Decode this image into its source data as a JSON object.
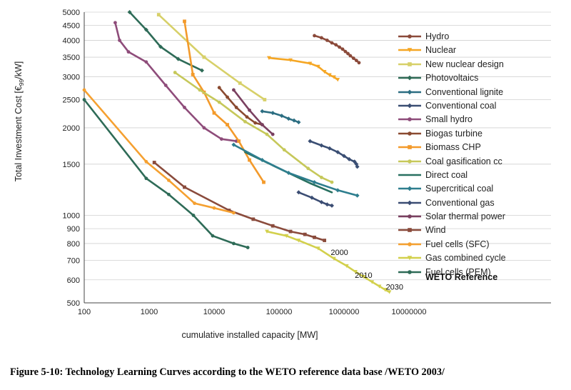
{
  "chart_data": {
    "type": "line",
    "scale": "log-log",
    "xlabel": "cumulative installed capacity [MW]",
    "ylabel": "Total Investment Cost [€99/kW]",
    "ylabel_pre": "Total Investment Cost [€",
    "ylabel_sub": "99",
    "ylabel_post": "/kW]",
    "xlim": [
      100,
      10000000
    ],
    "ylim": [
      500,
      5000
    ],
    "x_ticks": [
      {
        "value": 100,
        "label": "100"
      },
      {
        "value": 1000,
        "label": "1000"
      },
      {
        "value": 10000,
        "label": "10000"
      },
      {
        "value": 100000,
        "label": "100000"
      },
      {
        "value": 1000000,
        "label": "1000000"
      },
      {
        "value": 10000000,
        "label": "10000000"
      }
    ],
    "y_ticks": [
      {
        "value": 500,
        "label": "500"
      },
      {
        "value": 600,
        "label": "600"
      },
      {
        "value": 700,
        "label": "700"
      },
      {
        "value": 800,
        "label": "800"
      },
      {
        "value": 900,
        "label": "900"
      },
      {
        "value": 1000,
        "label": "1000"
      },
      {
        "value": 1500,
        "label": "1500"
      },
      {
        "value": 2000,
        "label": "2000"
      },
      {
        "value": 2500,
        "label": "2500"
      },
      {
        "value": 3000,
        "label": "3000"
      },
      {
        "value": 3500,
        "label": "3500"
      },
      {
        "value": 4000,
        "label": "4000"
      },
      {
        "value": 4500,
        "label": "4500"
      },
      {
        "value": 5000,
        "label": "5000"
      }
    ],
    "annotations": [
      {
        "text": "2000",
        "x": 850000,
        "y": 730
      },
      {
        "text": "2010",
        "x": 2000000,
        "y": 610
      },
      {
        "text": "2030",
        "x": 6000000,
        "y": 555
      }
    ],
    "series": [
      {
        "name": "Hydro",
        "color": "#8B4A3A",
        "marker": "dot",
        "x": [
          350000,
          450000,
          550000,
          650000,
          750000,
          850000,
          950000,
          1050000,
          1150000,
          1250000,
          1400000,
          1550000,
          1700000
        ],
        "y": [
          4150,
          4080,
          4000,
          3920,
          3860,
          3790,
          3730,
          3660,
          3600,
          3540,
          3470,
          3410,
          3350
        ]
      },
      {
        "name": "Nuclear",
        "color": "#F5A623",
        "marker": "tri",
        "x": [
          70000,
          150000,
          300000,
          400000,
          500000,
          600000,
          700000,
          800000
        ],
        "y": [
          3480,
          3420,
          3330,
          3250,
          3120,
          3040,
          2990,
          2930
        ]
      },
      {
        "name": "New nuclear design",
        "color": "#D7D069",
        "marker": "sq",
        "x": [
          1400,
          7000,
          25000,
          60000
        ],
        "y": [
          4900,
          3500,
          2850,
          2500
        ]
      },
      {
        "name": "Photovoltaics",
        "color": "#2E6B57",
        "marker": "dia",
        "x": [
          500,
          900,
          1500,
          2800,
          6500
        ],
        "y": [
          5000,
          4350,
          3800,
          3450,
          3150
        ]
      },
      {
        "name": "Conventional lignite",
        "color": "#2C6E82",
        "marker": "dia",
        "x": [
          55000,
          80000,
          110000,
          140000,
          170000,
          200000
        ],
        "y": [
          2280,
          2250,
          2200,
          2150,
          2120,
          2090
        ]
      },
      {
        "name": "Conventional coal",
        "color": "#3A4E73",
        "marker": "dia",
        "x": [
          300000,
          450000,
          600000,
          800000,
          1000000,
          1200000,
          1450000,
          1550000,
          1600000
        ],
        "y": [
          1800,
          1740,
          1700,
          1650,
          1600,
          1560,
          1530,
          1500,
          1470
        ]
      },
      {
        "name": "Small hydro",
        "color": "#8E4C7A",
        "marker": "dot",
        "x": [
          300,
          350,
          480,
          900,
          1800,
          3500,
          7000,
          13000,
          22000
        ],
        "y": [
          4600,
          4000,
          3650,
          3370,
          2800,
          2350,
          2000,
          1830,
          1800
        ]
      },
      {
        "name": "Biogas turbine",
        "color": "#8A4A30",
        "marker": "dot",
        "x": [
          12000,
          16000,
          22000,
          32000,
          43000,
          55000
        ],
        "y": [
          2750,
          2550,
          2350,
          2180,
          2080,
          2050
        ]
      },
      {
        "name": "Biomass CHP",
        "color": "#F39A2B",
        "marker": "sq",
        "x": [
          3500,
          4700,
          7000,
          10000,
          16000,
          24000,
          35000,
          58000
        ],
        "y": [
          4650,
          3050,
          2650,
          2250,
          2050,
          1800,
          1550,
          1300
        ]
      },
      {
        "name": "Coal gasification cc",
        "color": "#C6C85A",
        "marker": "dot",
        "x": [
          2500,
          6000,
          12000,
          30000,
          65000,
          120000,
          280000,
          450000,
          650000
        ],
        "y": [
          3100,
          2700,
          2450,
          2100,
          1900,
          1680,
          1450,
          1350,
          1300
        ]
      },
      {
        "name": "Direct coal",
        "color": "#287060",
        "marker": "none",
        "x": [
          30000,
          100000,
          300000,
          650000
        ],
        "y": [
          1650,
          1450,
          1290,
          1200
        ]
      },
      {
        "name": "Supercritical coal",
        "color": "#2E7E8E",
        "marker": "dia",
        "x": [
          20000,
          55000,
          140000,
          350000,
          800000,
          1600000
        ],
        "y": [
          1750,
          1550,
          1400,
          1300,
          1220,
          1170
        ]
      },
      {
        "name": "Conventional gas",
        "color": "#3B4D73",
        "marker": "dia",
        "x": [
          200000,
          320000,
          450000,
          550000,
          650000
        ],
        "y": [
          1200,
          1150,
          1110,
          1090,
          1080
        ]
      },
      {
        "name": "Solar thermal power",
        "color": "#7A4060",
        "marker": "dot",
        "x": [
          20000,
          35000,
          55000,
          80000
        ],
        "y": [
          2700,
          2300,
          2050,
          1900
        ]
      },
      {
        "name": "Wind",
        "color": "#8A4B3C",
        "marker": "sq",
        "x": [
          1200,
          3500,
          17000,
          40000,
          80000,
          150000,
          250000,
          350000,
          500000
        ],
        "y": [
          1520,
          1250,
          1040,
          970,
          920,
          880,
          860,
          840,
          820
        ]
      },
      {
        "name": "Fuel cells (SFC)",
        "color": "#F5A030",
        "marker": "dot",
        "x": [
          100,
          900,
          2000,
          5000,
          10000,
          20000
        ],
        "y": [
          2700,
          1530,
          1320,
          1100,
          1060,
          1020
        ]
      },
      {
        "name": "Gas combined cycle",
        "color": "#D2D04C",
        "marker": "tri",
        "x": [
          65000,
          130000,
          200000,
          400000,
          700000,
          1100000,
          1500000,
          2000000,
          2700000,
          3500000,
          4300000,
          5000000
        ],
        "y": [
          880,
          850,
          820,
          770,
          710,
          670,
          640,
          615,
          590,
          570,
          555,
          545
        ]
      },
      {
        "name": "Fuel cells (PEM)",
        "color": "#2E6B57",
        "marker": "dot",
        "x": [
          100,
          900,
          2000,
          4800,
          9500,
          20000,
          33000
        ],
        "y": [
          2500,
          1340,
          1180,
          1000,
          850,
          800,
          775
        ]
      }
    ]
  },
  "legend_title": "WETO Reference",
  "caption": "Figure 5-10: Technology Learning Curves according to the WETO reference data base /WETO 2003/"
}
